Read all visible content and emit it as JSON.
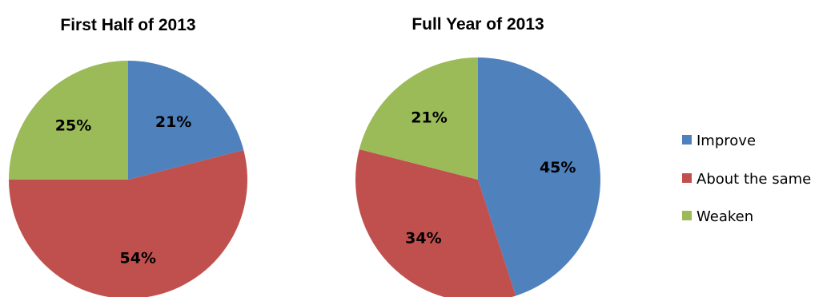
{
  "chart_data": [
    {
      "type": "pie",
      "title": "First Half of 2013",
      "categories": [
        "Improve",
        "About the same",
        "Weaken"
      ],
      "values": [
        21,
        54,
        25
      ],
      "labels": [
        "21%",
        "54%",
        "25%"
      ],
      "start_angle": "12 o'clock",
      "direction": "clockwise"
    },
    {
      "type": "pie",
      "title": "Full Year of 2013",
      "categories": [
        "Improve",
        "About the same",
        "Weaken"
      ],
      "values": [
        45,
        34,
        21
      ],
      "labels": [
        "45%",
        "34%",
        "21%"
      ],
      "start_angle": "12 o'clock",
      "direction": "clockwise"
    }
  ],
  "legend": {
    "placement": "right",
    "items": [
      {
        "label": "Improve",
        "color": "#4F81BD"
      },
      {
        "label": "About the same",
        "color": "#C0504D"
      },
      {
        "label": "Weaken",
        "color": "#9BBB59"
      }
    ]
  }
}
